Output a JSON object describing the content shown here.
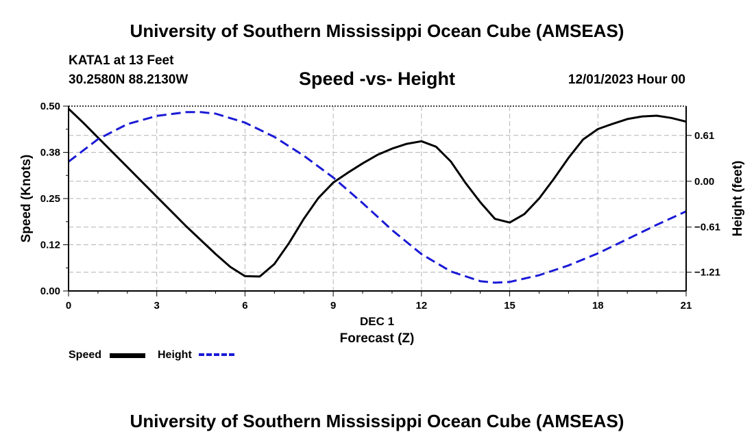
{
  "page": {
    "title": "University of Southern Mississippi Ocean Cube (AMSEAS)",
    "station": "KATA1 at 13 Feet",
    "coords": "30.2580N  88.2130W",
    "plot_title": "Speed -vs- Height",
    "datetime": "12/01/2023 Hour 00",
    "footer_title": "University of Southern Mississippi Ocean Cube (AMSEAS)"
  },
  "legend": {
    "speed_label": "Speed",
    "height_label": "Height",
    "speed_color": "#000000",
    "height_color": "#1a1ad6"
  },
  "chart_data": {
    "type": "line",
    "title": "Speed -vs- Height",
    "xlabel": "Forecast (Z)",
    "xlabel_date": "DEC 1",
    "ylabel": "Speed (Knots)",
    "y2label": "Height (feet)",
    "xlim": [
      0,
      21
    ],
    "ylim": [
      0,
      0.5
    ],
    "y2lim": [
      -1.46,
      1.0
    ],
    "xticks": [
      0,
      3,
      6,
      9,
      12,
      15,
      18,
      21
    ],
    "xtick_labels": [
      "0",
      "3",
      "6",
      "9",
      "12",
      "15",
      "18",
      "21"
    ],
    "yticks": [
      0.0,
      0.125,
      0.25,
      0.375,
      0.5
    ],
    "ytick_labels": [
      "0.00",
      "0.12",
      "0.25",
      "0.38",
      "0.50"
    ],
    "y2ticks": [
      -1.21,
      -0.61,
      0.0,
      0.61
    ],
    "y2tick_labels": [
      "−1.21",
      "−0.61",
      "0.00",
      "0.61"
    ],
    "grid": true,
    "series": [
      {
        "name": "Speed",
        "axis": "left",
        "color": "#000000",
        "style": "solid",
        "x": [
          0,
          0.5,
          1,
          2,
          3,
          4,
          5,
          5.5,
          6,
          6.5,
          7,
          7.5,
          8,
          8.5,
          9,
          9.5,
          10,
          10.5,
          11,
          11.5,
          12,
          12.5,
          13,
          13.5,
          14,
          14.5,
          15,
          15.5,
          16,
          16.5,
          17,
          17.5,
          18,
          18.5,
          19,
          19.5,
          20,
          20.5,
          21
        ],
        "values": [
          0.493,
          0.455,
          0.415,
          0.335,
          0.255,
          0.175,
          0.1,
          0.065,
          0.04,
          0.039,
          0.073,
          0.13,
          0.195,
          0.252,
          0.293,
          0.32,
          0.345,
          0.368,
          0.385,
          0.398,
          0.405,
          0.39,
          0.35,
          0.292,
          0.24,
          0.195,
          0.185,
          0.208,
          0.25,
          0.303,
          0.36,
          0.41,
          0.438,
          0.452,
          0.465,
          0.472,
          0.474,
          0.468,
          0.458
        ]
      },
      {
        "name": "Height",
        "axis": "right",
        "color": "#1a1ad6",
        "style": "dashed",
        "x": [
          0,
          1,
          2,
          3,
          4,
          4.5,
          5,
          6,
          7,
          8,
          9,
          10,
          11,
          12,
          13,
          14,
          14.5,
          15,
          16,
          17,
          18,
          19,
          20,
          21
        ],
        "values": [
          0.26,
          0.56,
          0.76,
          0.87,
          0.92,
          0.92,
          0.9,
          0.78,
          0.59,
          0.34,
          0.05,
          -0.29,
          -0.65,
          -0.97,
          -1.2,
          -1.33,
          -1.35,
          -1.34,
          -1.25,
          -1.12,
          -0.96,
          -0.77,
          -0.58,
          -0.4
        ]
      }
    ]
  }
}
